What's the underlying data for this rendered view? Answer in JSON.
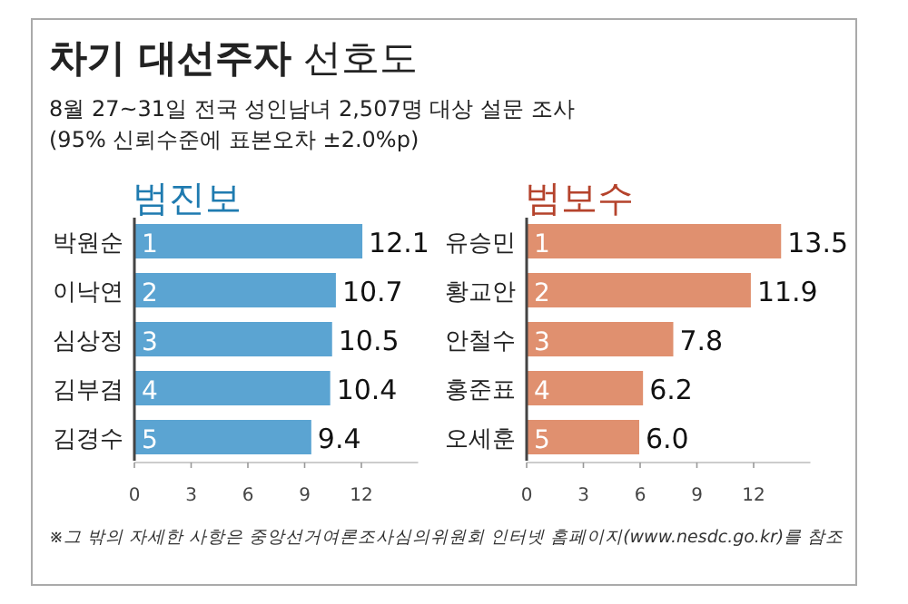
{
  "chart_data": [
    {
      "type": "other",
      "title": "**차기 대선주자** 선호도",
      "subtitle": "8월 27~31일 전국 성인남녀 2,507명 대상 설문 조사",
      "annotations": [
        "(95% 신뢰수준에 표본오차 ±2.0%p)",
        "※그 밖의 자세한 사항은 중앙선거여론조사심의위원회 인터넷 홈페이지(www.nesdc.go.kr)를 참조"
      ]
    },
    {
      "type": "bar",
      "orientation": "horizontal",
      "title": "범진보",
      "categories": [
        "박원순",
        "이낙연",
        "심상정",
        "김부겸",
        "김경수"
      ],
      "values": [
        12.1,
        10.7,
        10.5,
        10.4,
        9.4
      ],
      "color": "#5ba4d2",
      "xlim": [
        0,
        15
      ],
      "xticks": [
        0,
        3,
        6,
        9,
        12
      ],
      "value_labels": [
        "12.1",
        "10.7",
        "10.5",
        "10.4",
        "9.4"
      ],
      "annotations": [
        {
          "text": "1",
          "y": "박원순"
        },
        {
          "text": "2",
          "y": "이낙연"
        },
        {
          "text": "3",
          "y": "심상정"
        },
        {
          "text": "4",
          "y": "김부겸"
        },
        {
          "text": "5",
          "y": "김경수"
        }
      ]
    },
    {
      "type": "bar",
      "orientation": "horizontal",
      "title": "범보수",
      "categories": [
        "유승민",
        "황교안",
        "안철수",
        "홍준표",
        "오세훈"
      ],
      "values": [
        13.5,
        11.9,
        7.8,
        6.2,
        6.0
      ],
      "color": "#e0906f",
      "xlim": [
        0,
        15
      ],
      "xticks": [
        0,
        3,
        6,
        9,
        12
      ],
      "value_labels": [
        "13.5",
        "11.9",
        "7.8",
        "6.2",
        "6.0"
      ],
      "annotations": [
        {
          "text": "1",
          "y": "유승민"
        },
        {
          "text": "2",
          "y": "황교안"
        },
        {
          "text": "3",
          "y": "안철수"
        },
        {
          "text": "4",
          "y": "홍준표"
        },
        {
          "text": "5",
          "y": "오세훈"
        }
      ]
    }
  ]
}
